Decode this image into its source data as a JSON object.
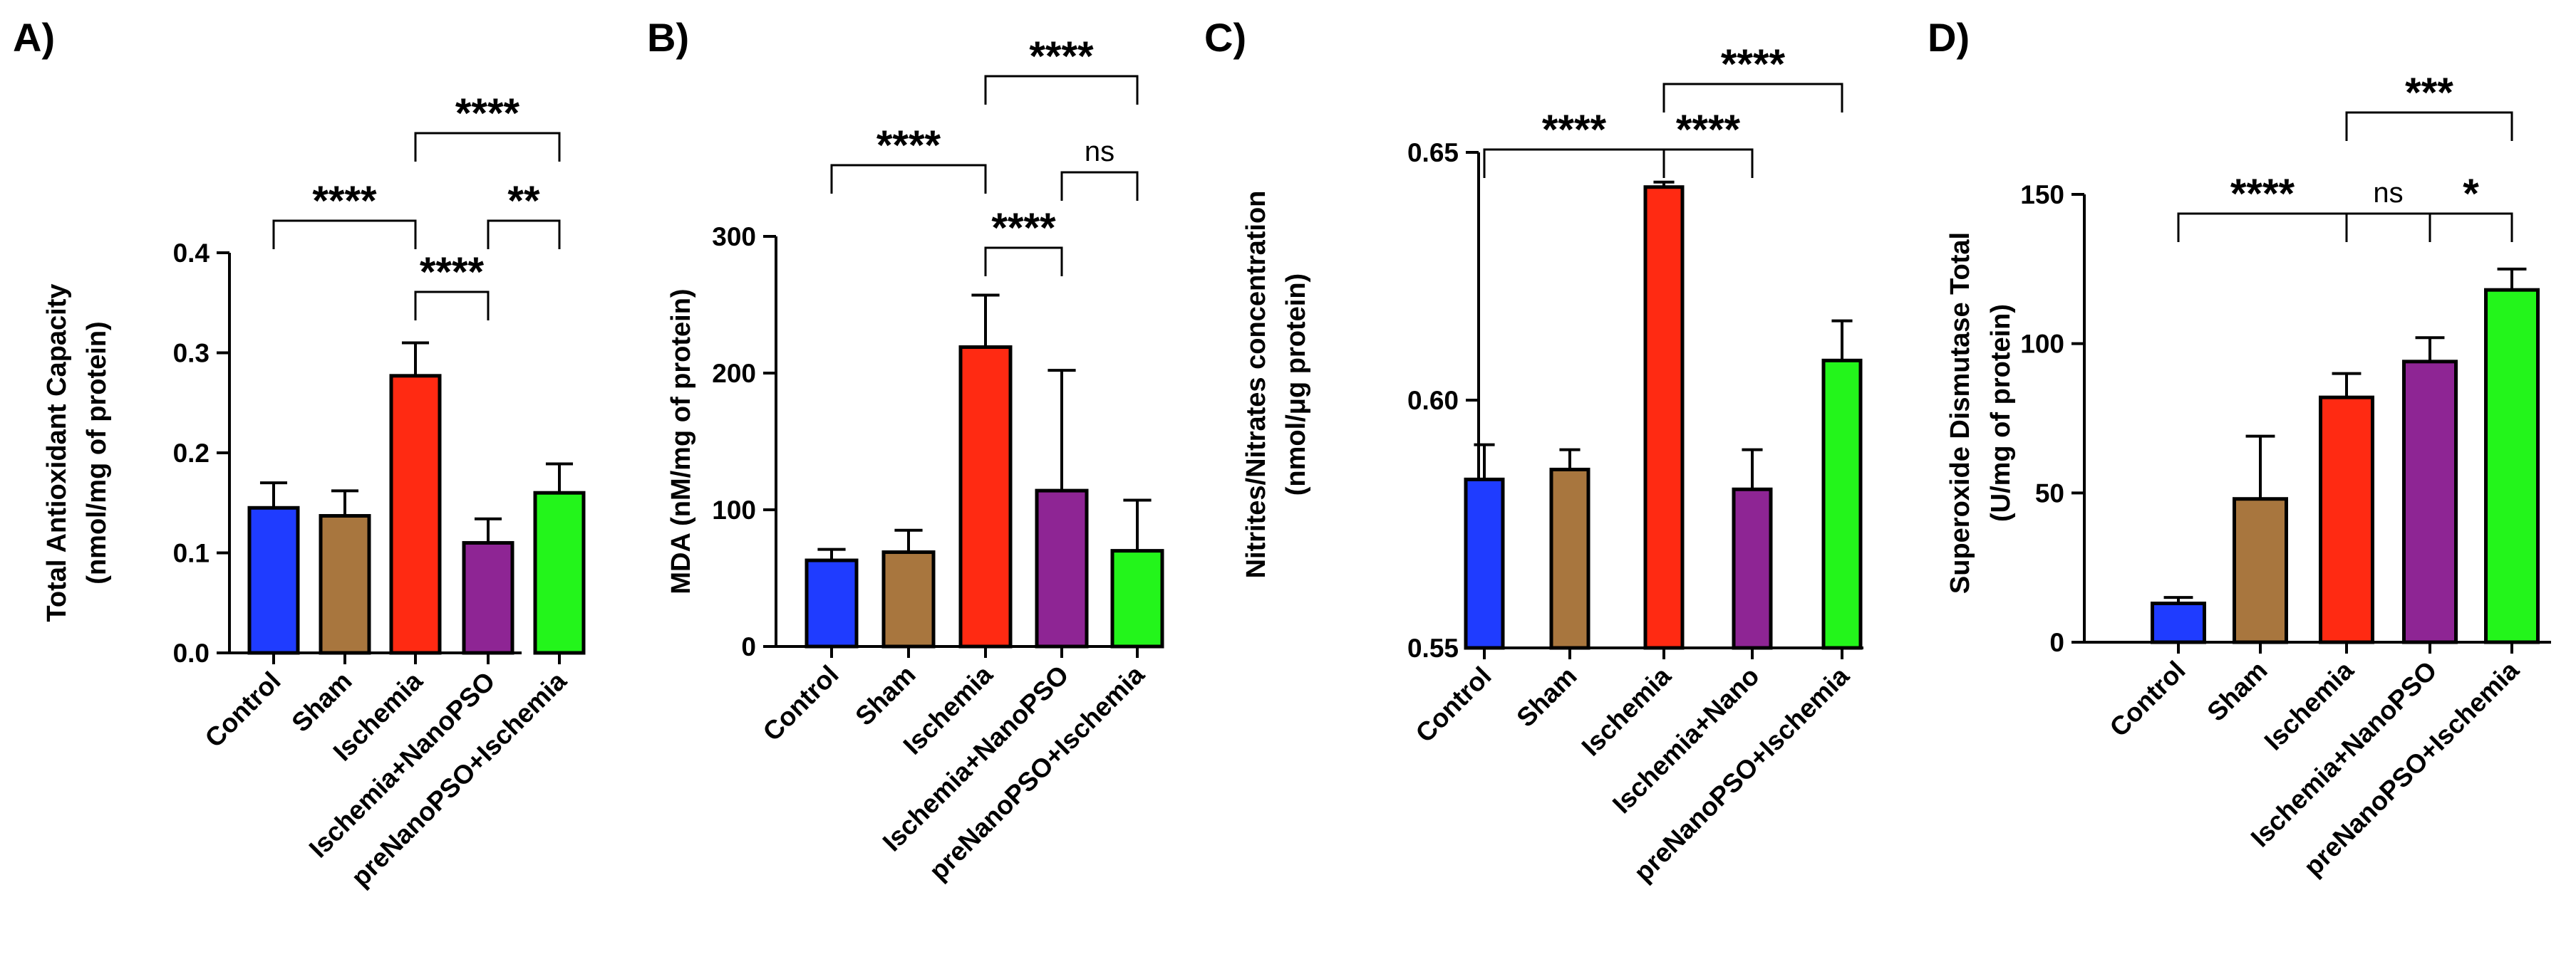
{
  "chart_data": [
    {
      "type": "bar",
      "panel": "A)",
      "ylabel_lines": [
        "Total Antioxidant Capacity",
        "(nmol/mg of protein)"
      ],
      "categories": [
        "Control",
        "Sham",
        "Ischemia",
        "Ischemia+NanoPSO",
        "preNanoPSO+Ischemia"
      ],
      "values": [
        0.145,
        0.137,
        0.277,
        0.11,
        0.16
      ],
      "errors": [
        0.025,
        0.025,
        0.033,
        0.024,
        0.029
      ],
      "ylim": [
        0,
        0.4
      ],
      "yticks": [
        "0.0",
        "0.1",
        "0.2",
        "0.3",
        "0.4"
      ],
      "significance": [
        {
          "from": 0,
          "to": 2,
          "label": "****"
        },
        {
          "from": 2,
          "to": 4,
          "label": "****"
        },
        {
          "from": 2,
          "to": 3,
          "label": "****"
        },
        {
          "from": 3,
          "to": 4,
          "label": "**"
        }
      ]
    },
    {
      "type": "bar",
      "panel": "B)",
      "ylabel_lines": [
        "MDA (nM/mg of protein)"
      ],
      "categories": [
        "Control",
        "Sham",
        "Ischemia",
        "Ischemia+NanoPSO",
        "preNanoPSO+Ischemia"
      ],
      "values": [
        63,
        69,
        219,
        114,
        70
      ],
      "errors": [
        8,
        16,
        38,
        88,
        37
      ],
      "ylim": [
        0,
        300
      ],
      "yticks": [
        "0",
        "100",
        "200",
        "300"
      ],
      "significance": [
        {
          "from": 0,
          "to": 2,
          "label": "****"
        },
        {
          "from": 2,
          "to": 4,
          "label": "****"
        },
        {
          "from": 2,
          "to": 3,
          "label": "****"
        },
        {
          "from": 3,
          "to": 4,
          "label": "ns"
        }
      ]
    },
    {
      "type": "bar",
      "panel": "C)",
      "ylabel_lines": [
        "Nitrites/Nitrates concentration",
        "(nmol/μg protein)"
      ],
      "categories": [
        "Control",
        "Sham",
        "Ischemia",
        "Ischemia+Nano",
        "preNanoPSO+Ischemia"
      ],
      "values": [
        0.584,
        0.586,
        0.643,
        0.582,
        0.608
      ],
      "errors": [
        0.007,
        0.004,
        0.001,
        0.008,
        0.008
      ],
      "ylim": [
        0.55,
        0.65
      ],
      "yticks": [
        "0.55",
        "0.60",
        "0.65"
      ],
      "significance": [
        {
          "from": 0,
          "to": 2,
          "label": "****"
        },
        {
          "from": 2,
          "to": 4,
          "label": "****"
        },
        {
          "from": 2,
          "to": 3,
          "label": "****"
        }
      ]
    },
    {
      "type": "bar",
      "panel": "D)",
      "ylabel_lines": [
        "Superoxide Dismutase Total",
        "(U/mg of protein)"
      ],
      "categories": [
        "Control",
        "Sham",
        "Ischemia",
        "Ischemia+NanoPSO",
        "preNanoPSO+Ischemia"
      ],
      "values": [
        13,
        48,
        82,
        94,
        118
      ],
      "errors": [
        2,
        21,
        8,
        8,
        7
      ],
      "ylim": [
        0,
        150
      ],
      "yticks": [
        "0",
        "50",
        "100",
        "150"
      ],
      "significance": [
        {
          "from": 0,
          "to": 2,
          "label": "****"
        },
        {
          "from": 2,
          "to": 4,
          "label": "***"
        },
        {
          "from": 2,
          "to": 3,
          "label": "ns"
        },
        {
          "from": 3,
          "to": 4,
          "label": "*"
        }
      ]
    }
  ],
  "colors": {
    "bars": [
      "#1f3cff",
      "#a8763e",
      "#ff2a12",
      "#8e2594",
      "#23f51b"
    ],
    "axis": "#000000"
  }
}
